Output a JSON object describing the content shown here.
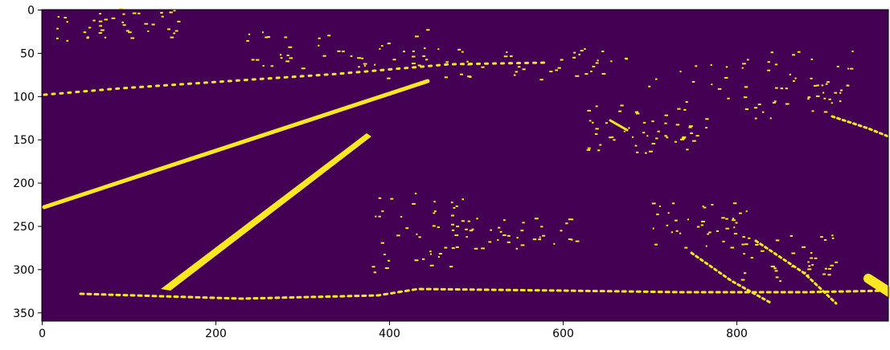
{
  "chart_data": {
    "type": "image",
    "colors": [
      "#440154",
      "#fde725"
    ],
    "xlim": [
      -0.5,
      974.5
    ],
    "ylim": [
      359.5,
      -0.5
    ],
    "xticks": [
      0,
      200,
      400,
      600,
      800
    ],
    "yticks": [
      0,
      50,
      100,
      150,
      200,
      250,
      300,
      350
    ]
  }
}
